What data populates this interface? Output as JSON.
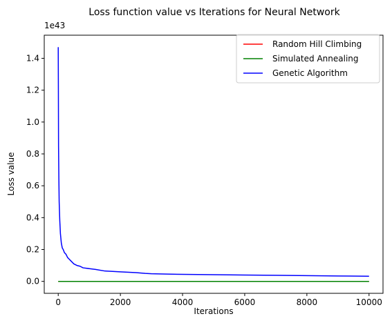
{
  "chart_data": {
    "type": "line",
    "title": "Loss function value vs Iterations for Neural Network",
    "xlabel": "Iterations",
    "ylabel": "Loss value",
    "y_scale_label": "1e43",
    "xlim": [
      -450,
      10450
    ],
    "ylim": [
      -0.075,
      1.545
    ],
    "x_ticks": [
      0,
      2000,
      4000,
      6000,
      8000,
      10000
    ],
    "x_tick_labels": [
      "0",
      "2000",
      "4000",
      "6000",
      "8000",
      "10000"
    ],
    "y_ticks": [
      0.0,
      0.2,
      0.4,
      0.6,
      0.8,
      1.0,
      1.2,
      1.4
    ],
    "y_tick_labels": [
      "0.0",
      "0.2",
      "0.4",
      "0.6",
      "0.8",
      "1.0",
      "1.2",
      "1.4"
    ],
    "grid": false,
    "legend_position": "top-right",
    "series": [
      {
        "name": "Random Hill Climbing",
        "color": "#ff0000",
        "x": [
          0,
          10000
        ],
        "y": [
          0.0,
          0.0
        ]
      },
      {
        "name": "Simulated Annealing",
        "color": "#008000",
        "x": [
          0,
          10000
        ],
        "y": [
          0.0,
          0.0
        ]
      },
      {
        "name": "Genetic Algorithm",
        "color": "#0000ff",
        "x": [
          0,
          5,
          10,
          20,
          30,
          50,
          70,
          100,
          130,
          160,
          200,
          250,
          300,
          350,
          400,
          500,
          600,
          700,
          800,
          1000,
          1200,
          1500,
          2000,
          2500,
          2800,
          3000,
          3500,
          4000,
          5000,
          6000,
          7000,
          8000,
          9000,
          10000
        ],
        "y": [
          1.47,
          1.2,
          0.85,
          0.65,
          0.5,
          0.38,
          0.3,
          0.24,
          0.21,
          0.2,
          0.18,
          0.17,
          0.15,
          0.14,
          0.13,
          0.11,
          0.1,
          0.095,
          0.085,
          0.08,
          0.075,
          0.065,
          0.06,
          0.055,
          0.05,
          0.048,
          0.046,
          0.044,
          0.042,
          0.04,
          0.038,
          0.036,
          0.034,
          0.032
        ]
      }
    ]
  }
}
